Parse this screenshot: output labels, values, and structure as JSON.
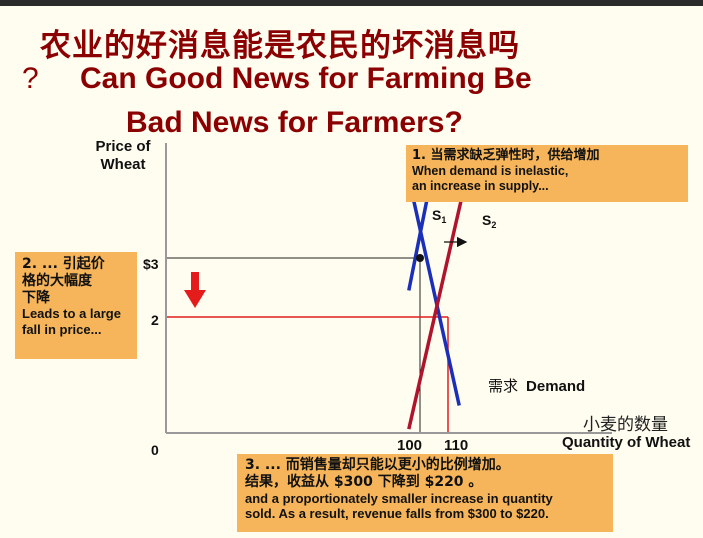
{
  "title": {
    "chinese": "农业的好消息能是农民的坏消息吗",
    "question_mark": "?",
    "english_line1": "Can Good News for Farming Be",
    "english_line2": "Bad News for Farmers?"
  },
  "axes": {
    "y_label_line1": "Price of",
    "y_label_line2": "Wheat",
    "x_label_cn": "小麦的数量",
    "x_label_en": "Quantity of Wheat",
    "origin": "0",
    "y_ticks": [
      "$3",
      "2"
    ],
    "x_ticks": [
      "100",
      "110"
    ]
  },
  "curves": {
    "supply1_label": "S",
    "supply1_sub": "1",
    "supply2_label": "S",
    "supply2_sub": "2",
    "demand_cn": "需求",
    "demand_en": "Demand"
  },
  "notes": {
    "note1_cn": "1. 当需求缺乏弹性时，供给增加",
    "note1_en_line1": "When demand is inelastic,",
    "note1_en_line2": "an increase in supply...",
    "note2_cn_line1": "2. ... 引起价",
    "note2_cn_line2": "格的大幅度",
    "note2_cn_line3": "下降",
    "note2_en_line1": "Leads to a large",
    "note2_en_line2": "fall in price...",
    "note3_cn_line1": "3. ... 而销售量却只能以更小的比例增加。",
    "note3_cn_line2": "结果，收益从 $300 下降到 $220 。",
    "note3_en_line1": "and a proportionately smaller increase in quantity",
    "note3_en_line2": "sold.  As a result, revenue falls from $300 to $220."
  },
  "colors": {
    "title": "#8b0000",
    "demand": "#1c2fb8",
    "supply": "#b0142c",
    "note_box": "#f6b55a",
    "down_arrow": "#e41c1c",
    "guide_dark": "#222222",
    "guide_red": "#e41c1c"
  },
  "chart_data": {
    "type": "line",
    "series": [
      {
        "name": "S1",
        "points": [
          [
            96,
            2.45
          ],
          [
            104,
            4.35
          ]
        ]
      },
      {
        "name": "S2",
        "points": [
          [
            96,
            0.1
          ],
          [
            116,
            4.25
          ]
        ]
      },
      {
        "name": "Demand",
        "points": [
          [
            96,
            4.35
          ],
          [
            114,
            0.5
          ]
        ]
      }
    ],
    "equilibria": [
      {
        "price": 3,
        "quantity": 100
      },
      {
        "price": 2,
        "quantity": 110
      }
    ],
    "revenue_before": 300,
    "revenue_after": 220
  }
}
